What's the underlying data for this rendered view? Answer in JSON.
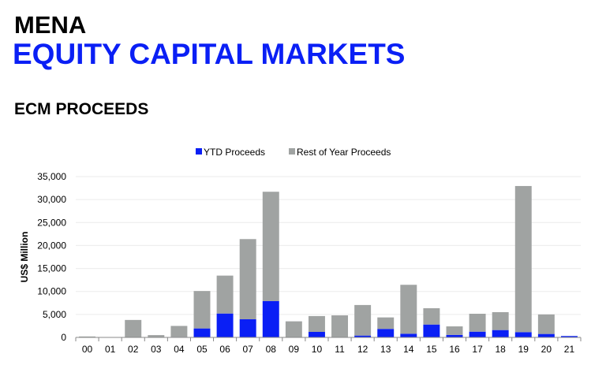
{
  "header": {
    "region": "MENA",
    "title": "EQUITY CAPITAL MARKETS",
    "subtitle": "ECM PROCEEDS"
  },
  "chart_data": {
    "type": "bar",
    "stacked": true,
    "ylabel": "US$ Million",
    "ylim": [
      0,
      35000
    ],
    "yticks": [
      0,
      5000,
      10000,
      15000,
      20000,
      25000,
      30000,
      35000
    ],
    "ytick_labels": [
      "0",
      "5,000",
      "10,000",
      "15,000",
      "20,000",
      "25,000",
      "30,000",
      "35,000"
    ],
    "grid": true,
    "legend_position": "top",
    "categories": [
      "00",
      "01",
      "02",
      "03",
      "04",
      "05",
      "06",
      "07",
      "08",
      "09",
      "10",
      "11",
      "12",
      "13",
      "14",
      "15",
      "16",
      "17",
      "18",
      "19",
      "20",
      "21"
    ],
    "series": [
      {
        "name": "YTD Proceeds",
        "color": "#0a1ff5",
        "values": [
          0,
          0,
          0,
          0,
          100,
          1950,
          5200,
          3950,
          7900,
          0,
          1200,
          0,
          400,
          1850,
          800,
          2800,
          550,
          1250,
          1600,
          1150,
          750,
          300
        ]
      },
      {
        "name": "Rest of Year Proceeds",
        "color": "#a0a3a2",
        "values": [
          200,
          0,
          3800,
          500,
          2400,
          8150,
          8250,
          17450,
          23800,
          3500,
          3450,
          4800,
          6650,
          2500,
          10650,
          3550,
          1850,
          3900,
          3900,
          31800,
          4250,
          0
        ]
      }
    ]
  }
}
